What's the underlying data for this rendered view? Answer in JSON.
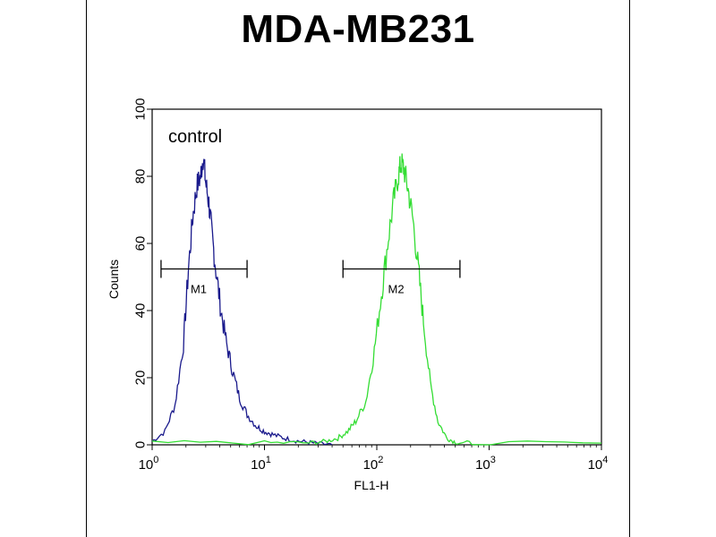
{
  "chart_data": {
    "type": "line",
    "title": "MDA-MB231",
    "xlabel": "FL1-H",
    "ylabel": "Counts",
    "xscale": "log",
    "xlim": [
      1,
      10000
    ],
    "ylim": [
      0,
      100
    ],
    "x_ticks": [
      {
        "base": "10",
        "exp": "0"
      },
      {
        "base": "10",
        "exp": "1"
      },
      {
        "base": "10",
        "exp": "2"
      },
      {
        "base": "10",
        "exp": "3"
      },
      {
        "base": "10",
        "exp": "4"
      }
    ],
    "y_ticks": [
      "0",
      "20",
      "40",
      "60",
      "80",
      "100"
    ],
    "grid": false,
    "annotation": "control",
    "series": [
      {
        "color": "#1a1a8c",
        "x": [
          1.0,
          1.3,
          1.6,
          1.9,
          2.1,
          2.3,
          2.5,
          2.7,
          2.85,
          3.0,
          3.2,
          3.4,
          3.7,
          4.1,
          4.6,
          5.2,
          6.0,
          7.0,
          8.5,
          10,
          12,
          15,
          19,
          24,
          30,
          40
        ],
        "y": [
          1,
          4,
          12,
          30,
          52,
          68,
          77,
          80,
          86,
          78,
          72,
          63,
          52,
          40,
          30,
          22,
          14,
          9,
          5.5,
          4,
          3,
          2,
          1.2,
          0.8,
          0.4,
          0
        ]
      },
      {
        "color": "#33dd33",
        "x": [
          1,
          10,
          25,
          35,
          45,
          55,
          65,
          80,
          95,
          110,
          125,
          140,
          155,
          165,
          175,
          190,
          210,
          235,
          260,
          300,
          350,
          420,
          500,
          700,
          10000
        ],
        "y": [
          0.6,
          0.6,
          0.6,
          1,
          2,
          4,
          7,
          13,
          28,
          45,
          60,
          72,
          80,
          84,
          82,
          76,
          67,
          52,
          37,
          18,
          7,
          2,
          0.8,
          0.5,
          0.5
        ]
      }
    ],
    "markers": [
      {
        "label": "M1",
        "x_start": 1.2,
        "x_end": 7.0,
        "y": 46
      },
      {
        "label": "M2",
        "x_start": 50,
        "x_end": 550,
        "y": 46
      }
    ]
  }
}
